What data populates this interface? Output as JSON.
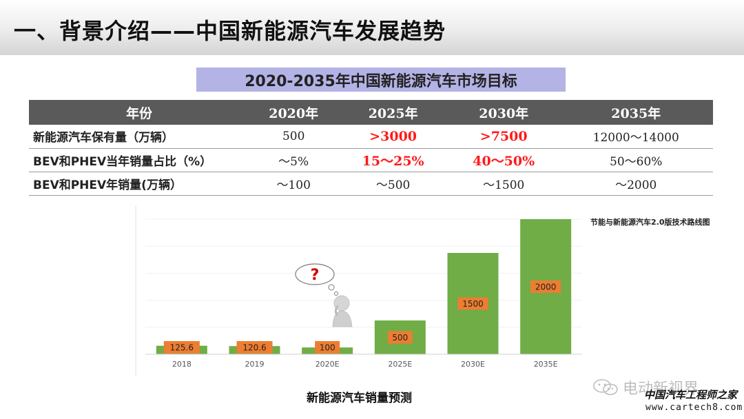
{
  "slide": {
    "title": "一、背景介绍——中国新能源汽车发展趋势",
    "subtitle": "2020-2035年中国新能源汽车市场目标"
  },
  "table": {
    "headers": [
      "年份",
      "2020年",
      "2025年",
      "2030年",
      "2035年"
    ],
    "rows": [
      {
        "label": "新能源汽车保有量（万辆）",
        "cells": [
          "500",
          ">3000",
          ">7500",
          "12000～14000"
        ]
      },
      {
        "label": "BEV和PHEV当年销量占比（%）",
        "cells": [
          "～5%",
          "15～25%",
          "40～50%",
          "50～60%"
        ]
      },
      {
        "label": "BEV和PHEV年销量(万辆）",
        "cells": [
          "～100",
          "～500",
          "～1500",
          "～2000"
        ]
      }
    ],
    "highlight_color": "#ff1a1a"
  },
  "chart_data": {
    "type": "bar",
    "title": "",
    "xlabel": "",
    "ylabel": "",
    "categories": [
      "2018",
      "2019",
      "2020E",
      "2025E",
      "2030E",
      "2035E"
    ],
    "values": [
      125.6,
      120.6,
      100,
      500,
      1500,
      2000
    ],
    "data_labels": [
      "125.6",
      "120.6",
      "100",
      "500",
      "1500",
      "2000"
    ],
    "ylim": [
      0,
      2000
    ],
    "grid": true,
    "bar_color": "#70ad47",
    "label_box_color": "#ed7d31",
    "caption": "新能源汽车销量预测",
    "source_note": "节能与新能源汽车2.0版技术路线图",
    "thought_bubble_text": "?"
  },
  "watermark": {
    "channel": "电动新视界",
    "site_name": "中国汽车工程师之家",
    "url": "www.cartech8.com"
  }
}
